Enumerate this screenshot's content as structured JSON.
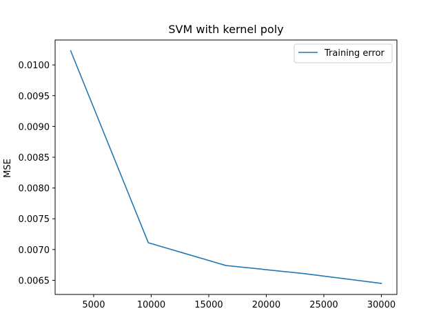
{
  "chart_data": {
    "type": "line",
    "title": "SVM with kernel poly",
    "xlabel": "",
    "ylabel": "MSE",
    "xlim": [
      1650,
      31350
    ],
    "ylim": [
      0.00627,
      0.010405
    ],
    "xticks": [
      5000,
      10000,
      15000,
      20000,
      25000,
      30000
    ],
    "yticks": [
      0.0065,
      0.007,
      0.0075,
      0.008,
      0.0085,
      0.009,
      0.0095,
      0.01
    ],
    "xtick_labels": [
      "5000",
      "10000",
      "15000",
      "20000",
      "25000",
      "30000"
    ],
    "ytick_labels": [
      "0.0065",
      "0.0070",
      "0.0075",
      "0.0080",
      "0.0085",
      "0.0090",
      "0.0095",
      "0.0100"
    ],
    "grid": false,
    "legend_position": "upper right",
    "series": [
      {
        "name": "Training error",
        "color": "#1f77b4",
        "x": [
          3000,
          9750,
          16500,
          23250,
          30000
        ],
        "y": [
          0.01023,
          0.00711,
          0.00674,
          0.00661,
          0.00645
        ]
      }
    ]
  }
}
